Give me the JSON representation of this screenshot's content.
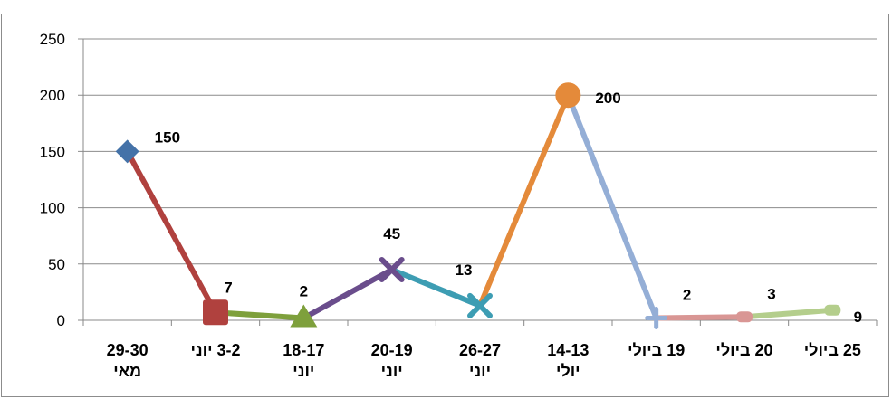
{
  "chart_data": {
    "type": "line",
    "title": "",
    "xlabel": "",
    "ylabel": "",
    "ylim": [
      0,
      250
    ],
    "yticks": [
      0,
      50,
      100,
      150,
      200,
      250
    ],
    "grid": true,
    "legend": "none",
    "categories": [
      [
        "29-30",
        "מאי"
      ],
      [
        "3-2 יוני"
      ],
      [
        "18-17",
        "יוני"
      ],
      [
        "20-19",
        "יוני"
      ],
      [
        "26-27",
        "יוני"
      ],
      [
        "14-13",
        "יולי"
      ],
      [
        "19 ביולי"
      ],
      [
        "20 ביולי"
      ],
      [
        "25 ביולי"
      ]
    ],
    "values": [
      150,
      7,
      2,
      45,
      13,
      200,
      2,
      3,
      9
    ],
    "data_labels": [
      "150",
      "7",
      "2",
      "45",
      "13",
      "200",
      "2",
      "3",
      "9"
    ],
    "point_colors": [
      "#4472a8",
      "#b0413e",
      "#7ea03c",
      "#6a4d8c",
      "#3d9db3",
      "#e48a3a",
      "#94aed6",
      "#d99694",
      "#b4ce8c"
    ],
    "segment_colors": [
      "#b0413e",
      "#7ea03c",
      "#6a4d8c",
      "#3d9db3",
      "#e48a3a",
      "#94aed6",
      "#d99694",
      "#b4ce8c"
    ],
    "markers": [
      "diamond",
      "square",
      "triangle",
      "x",
      "x",
      "circle",
      "plus",
      "dash",
      "dash"
    ]
  }
}
